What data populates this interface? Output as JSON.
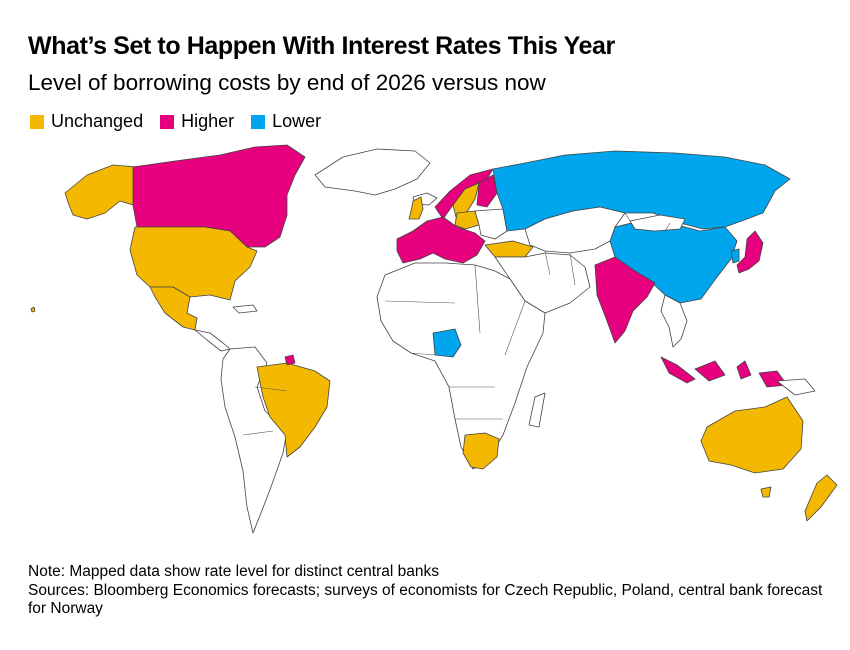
{
  "header": {
    "title": "What’s Set to Happen With Interest Rates This Year",
    "subtitle": "Level of borrowing costs by end of 2026 versus now"
  },
  "legend": {
    "items": [
      {
        "label": "Unchanged",
        "color": "#f4b800"
      },
      {
        "label": "Higher",
        "color": "#e6007e"
      },
      {
        "label": "Lower",
        "color": "#00a6ed"
      }
    ]
  },
  "map": {
    "colors": {
      "unchanged": "#f4b800",
      "higher": "#e6007e",
      "lower": "#00a6ed",
      "nodata": "#ffffff",
      "border": "#444444"
    },
    "regions": [
      {
        "name": "Alaska",
        "category": "unchanged"
      },
      {
        "name": "Canada",
        "category": "higher"
      },
      {
        "name": "United States",
        "category": "unchanged"
      },
      {
        "name": "Mexico",
        "category": "unchanged"
      },
      {
        "name": "Brazil",
        "category": "unchanged"
      },
      {
        "name": "Norway",
        "category": "higher"
      },
      {
        "name": "Sweden",
        "category": "unchanged"
      },
      {
        "name": "United Kingdom",
        "category": "unchanged"
      },
      {
        "name": "Euro area",
        "category": "higher"
      },
      {
        "name": "Poland",
        "category": "unchanged"
      },
      {
        "name": "Turkey",
        "category": "unchanged"
      },
      {
        "name": "Russia",
        "category": "lower"
      },
      {
        "name": "China",
        "category": "lower"
      },
      {
        "name": "Japan",
        "category": "higher"
      },
      {
        "name": "India",
        "category": "higher"
      },
      {
        "name": "Indonesia",
        "category": "higher"
      },
      {
        "name": "Nigeria",
        "category": "lower"
      },
      {
        "name": "South Africa",
        "category": "unchanged"
      },
      {
        "name": "Australia",
        "category": "unchanged"
      },
      {
        "name": "New Zealand",
        "category": "unchanged"
      }
    ]
  },
  "notes": {
    "note": "Note: Mapped data show rate level for distinct central banks",
    "sources": "Sources: Bloomberg Economics forecasts; surveys of economists for Czech Republic, Poland, central bank forecast for Norway"
  }
}
